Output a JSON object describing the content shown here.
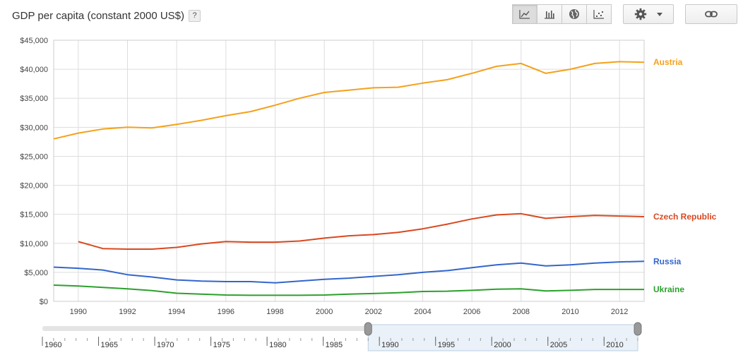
{
  "header": {
    "title": "GDP per capita (constant 2000 US$)",
    "help": "?"
  },
  "toolbar": {
    "buttons": [
      {
        "icon": "line-chart-icon",
        "active": true
      },
      {
        "icon": "bar-chart-icon",
        "active": false
      },
      {
        "icon": "globe-icon",
        "active": false
      },
      {
        "icon": "scatter-icon",
        "active": false
      }
    ],
    "settings_icon": "gear-icon",
    "link_icon": "link-icon"
  },
  "timeline": {
    "labels": [
      "1960",
      "1965",
      "1970",
      "1975",
      "1980",
      "1985",
      "1990",
      "1995",
      "2000",
      "2005",
      "2010"
    ]
  },
  "chart_data": {
    "type": "line",
    "title": "GDP per capita (constant 2000 US$)",
    "xlabel": "",
    "ylabel": "",
    "xlim": [
      1989,
      2013
    ],
    "ylim": [
      0,
      45000
    ],
    "x_ticks": [
      1990,
      1992,
      1994,
      1996,
      1998,
      2000,
      2002,
      2004,
      2006,
      2008,
      2010,
      2012
    ],
    "x_tick_labels": [
      "1990",
      "1992",
      "1994",
      "1996",
      "1998",
      "2000",
      "2002",
      "2004",
      "2006",
      "2008",
      "2010",
      "2012"
    ],
    "y_ticks": [
      0,
      5000,
      10000,
      15000,
      20000,
      25000,
      30000,
      35000,
      40000,
      45000
    ],
    "y_tick_labels": [
      "$0",
      "$5,000",
      "$10,000",
      "$15,000",
      "$20,000",
      "$25,000",
      "$30,000",
      "$35,000",
      "$40,000",
      "$45,000"
    ],
    "grid": true,
    "legend": "right (labels at line ends)",
    "series": [
      {
        "name": "Austria",
        "color": "#f4a11b",
        "x": [
          1989,
          1990,
          1991,
          1992,
          1993,
          1994,
          1995,
          1996,
          1997,
          1998,
          1999,
          2000,
          2001,
          2002,
          2003,
          2004,
          2005,
          2006,
          2007,
          2008,
          2009,
          2010,
          2011,
          2012,
          2013
        ],
        "y": [
          28000,
          29000,
          29700,
          30000,
          29900,
          30500,
          31200,
          32000,
          32700,
          33800,
          35000,
          36000,
          36400,
          36800,
          36900,
          37600,
          38200,
          39300,
          40500,
          41000,
          39300,
          40000,
          41000,
          41300,
          41200
        ]
      },
      {
        "name": "Czech Republic",
        "color": "#d9481f",
        "x": [
          1990,
          1991,
          1992,
          1993,
          1994,
          1995,
          1996,
          1997,
          1998,
          1999,
          2000,
          2001,
          2002,
          2003,
          2004,
          2005,
          2006,
          2007,
          2008,
          2009,
          2010,
          2011,
          2012,
          2013
        ],
        "y": [
          10300,
          9100,
          9000,
          9000,
          9300,
          9900,
          10300,
          10200,
          10200,
          10400,
          10900,
          11300,
          11500,
          11900,
          12500,
          13300,
          14200,
          14900,
          15100,
          14300,
          14600,
          14800,
          14700,
          14600
        ]
      },
      {
        "name": "Russia",
        "color": "#3366cc",
        "x": [
          1989,
          1990,
          1991,
          1992,
          1993,
          1994,
          1995,
          1996,
          1997,
          1998,
          1999,
          2000,
          2001,
          2002,
          2003,
          2004,
          2005,
          2006,
          2007,
          2008,
          2009,
          2010,
          2011,
          2012,
          2013
        ],
        "y": [
          5900,
          5700,
          5400,
          4600,
          4200,
          3700,
          3500,
          3400,
          3400,
          3200,
          3500,
          3800,
          4000,
          4300,
          4600,
          5000,
          5300,
          5800,
          6300,
          6600,
          6100,
          6300,
          6600,
          6800,
          6900
        ]
      },
      {
        "name": "Ukraine",
        "color": "#2ca02c",
        "x": [
          1989,
          1990,
          1991,
          1992,
          1993,
          1994,
          1995,
          1996,
          1997,
          1998,
          1999,
          2000,
          2001,
          2002,
          2003,
          2004,
          2005,
          2006,
          2007,
          2008,
          2009,
          2010,
          2011,
          2012,
          2013
        ],
        "y": [
          2800,
          2650,
          2400,
          2150,
          1850,
          1400,
          1250,
          1100,
          1050,
          1050,
          1050,
          1100,
          1250,
          1350,
          1500,
          1700,
          1750,
          1900,
          2100,
          2150,
          1800,
          1900,
          2050,
          2050,
          2050
        ]
      }
    ]
  }
}
